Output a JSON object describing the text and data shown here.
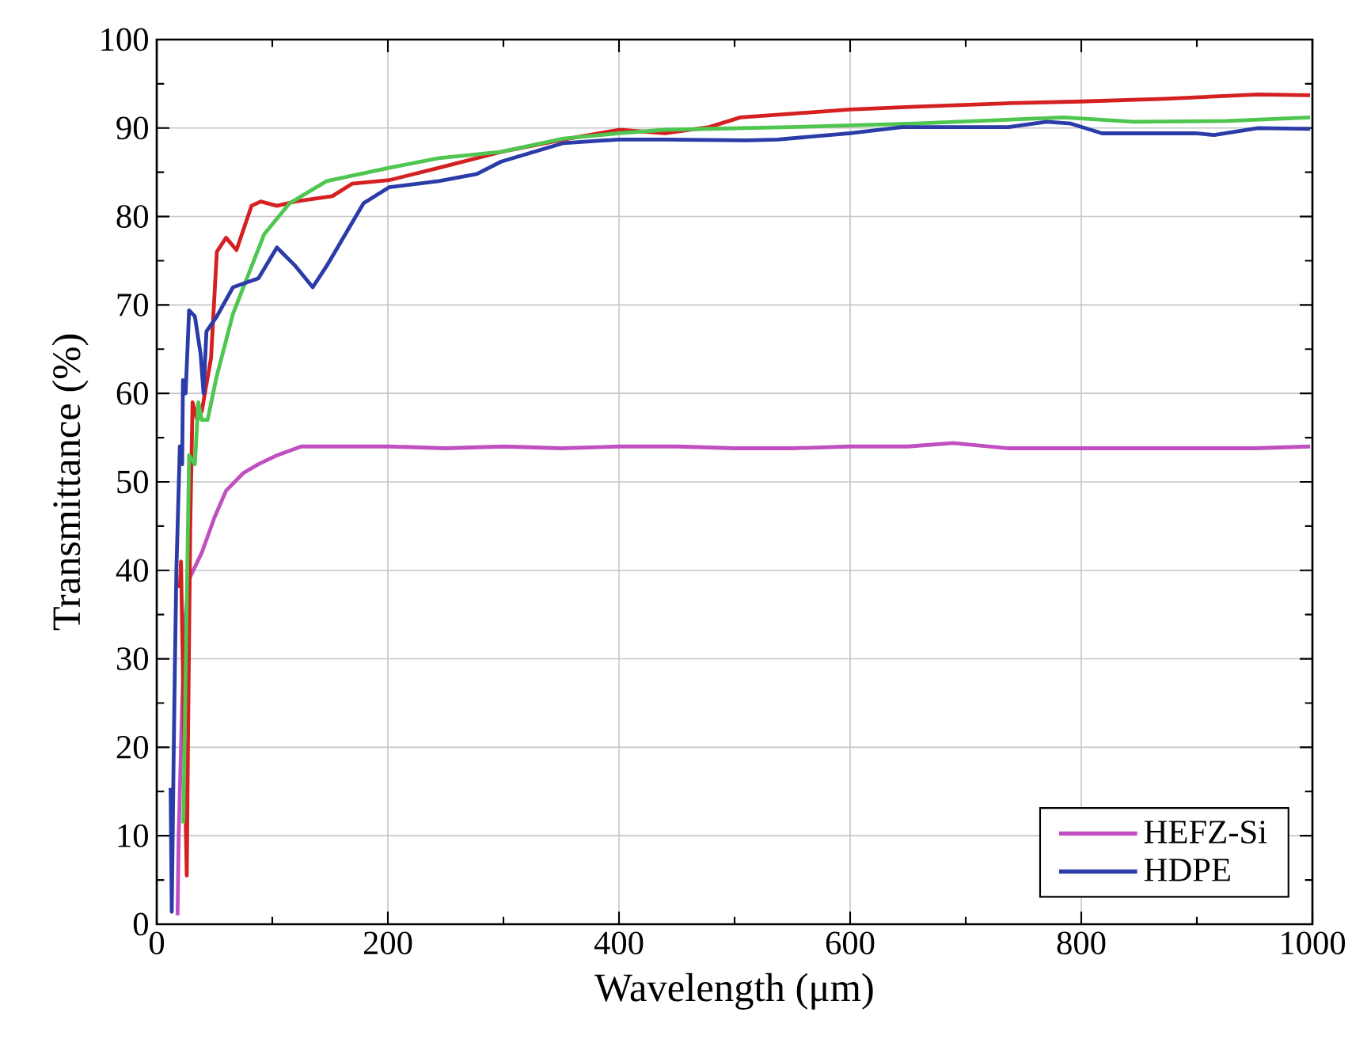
{
  "chart_data": {
    "type": "line",
    "xlabel": "Wavelength (μm)",
    "ylabel": "Transmittance (%)",
    "xlim": [
      0,
      1000
    ],
    "ylim": [
      0,
      100
    ],
    "xticks": [
      0,
      200,
      400,
      600,
      800,
      1000
    ],
    "yticks": [
      0,
      10,
      20,
      30,
      40,
      50,
      60,
      70,
      80,
      90,
      100
    ],
    "grid": true,
    "legend": "bottom right",
    "line_style": "solid",
    "marker": "none",
    "series": [
      {
        "name": "HEFZ-Si",
        "color": "#c04fc0",
        "x": [
          18,
          19,
          20,
          22,
          25,
          28,
          39,
          50,
          60,
          75,
          88,
          104,
          125,
          150,
          169,
          201,
          250,
          300,
          350,
          400,
          450,
          500,
          550,
          600,
          650,
          689,
          737,
          800,
          870,
          950,
          998
        ],
        "values": [
          1,
          10,
          15,
          25,
          35,
          39,
          42,
          46,
          49,
          51,
          52,
          53,
          54,
          54,
          54,
          54,
          53.8,
          54,
          53.8,
          54,
          54,
          53.8,
          53.8,
          54,
          54,
          54.4,
          53.8,
          53.8,
          53.8,
          53.8,
          54
        ]
      },
      {
        "color": "#d42020",
        "x": [
          20,
          21,
          23,
          25,
          26,
          27,
          29,
          31,
          35,
          39,
          47,
          52,
          60,
          69,
          82,
          90,
          104,
          120,
          152,
          169,
          201,
          244,
          298,
          352,
          400,
          440,
          478,
          505,
          548,
          600,
          656,
          737,
          800,
          872,
          953,
          998
        ],
        "values": [
          38,
          41,
          26,
          12,
          5.5,
          20,
          45,
          59,
          57,
          58,
          64,
          76,
          77.6,
          76.2,
          81.2,
          81.7,
          81.2,
          81.7,
          82.3,
          83.7,
          84.1,
          85.5,
          87.3,
          88.7,
          89.8,
          89.4,
          90.1,
          91.2,
          91.6,
          92.1,
          92.4,
          92.8,
          93,
          93.3,
          93.8,
          93.7
        ]
      },
      {
        "color": "#4fc64f",
        "x": [
          23,
          28,
          33,
          36,
          39,
          44,
          52,
          66,
          93,
          115,
          147,
          201,
          244,
          298,
          352,
          400,
          440,
          548,
          656,
          710,
          785,
          845,
          926,
          998
        ],
        "values": [
          11.4,
          53,
          52,
          59,
          57,
          57,
          62,
          69,
          78,
          81.5,
          84,
          85.5,
          86.6,
          87.3,
          88.8,
          89.4,
          89.8,
          90.1,
          90.5,
          90.8,
          91.2,
          90.7,
          90.8,
          91.2
        ]
      },
      {
        "name": "HDPE",
        "color": "#2b3ba8",
        "x": [
          12,
          13,
          14.6,
          15.7,
          17,
          20,
          22,
          22.7,
          25,
          28,
          33,
          38,
          40.5,
          43,
          52,
          66,
          88,
          104,
          120,
          135,
          147,
          179,
          201,
          244,
          277,
          298,
          352,
          400,
          440,
          510,
          537,
          600,
          645,
          737,
          770,
          791,
          818,
          899,
          915,
          953,
          998
        ],
        "values": [
          15.4,
          1.4,
          18.6,
          29,
          40,
          54,
          52,
          61.5,
          60,
          69.4,
          68.7,
          64.4,
          60,
          67,
          68.7,
          72,
          73,
          76.5,
          74.4,
          72,
          74.4,
          81.5,
          83.3,
          84,
          84.8,
          86.2,
          88.3,
          88.7,
          88.7,
          88.6,
          88.7,
          89.4,
          90.1,
          90.1,
          90.7,
          90.5,
          89.4,
          89.4,
          89.2,
          90,
          89.9
        ]
      }
    ]
  }
}
